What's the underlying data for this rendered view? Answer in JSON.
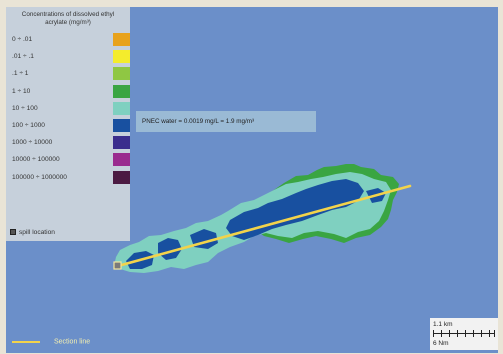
{
  "legend": {
    "title": "Concentrations of dissolved ethyl acrylate (mg/m³)",
    "classes": [
      {
        "label": "0 ÷ .01",
        "color": "#e8a21c"
      },
      {
        "label": ".01 ÷ .1",
        "color": "#f4ec2c"
      },
      {
        "label": ".1 ÷ 1",
        "color": "#8fc743"
      },
      {
        "label": "1 ÷ 10",
        "color": "#3aa542"
      },
      {
        "label": "10 ÷ 100",
        "color": "#7fd0c0"
      },
      {
        "label": "100 ÷ 1000",
        "color": "#1850a0"
      },
      {
        "label": "1000 ÷ 10000",
        "color": "#3a2d8d"
      },
      {
        "label": "10000 ÷ 100000",
        "color": "#9a2b8e"
      },
      {
        "label": "100000 ÷ 1000000",
        "color": "#4b1a42"
      }
    ],
    "spill_label": "spill location"
  },
  "annotation": "PNEC water = 0.0019 mg/L = 1.9 mg/m³",
  "section_line_label": "Section line",
  "scale": {
    "upper_label": "1.1 km",
    "lower_label": "6 Nm"
  },
  "colors": {
    "sea": "#6b8fc9",
    "green_edge": "#3aa542",
    "plume_cyan": "#7fd0c0",
    "plume_core": "#1850a0",
    "section_line": "#f2d34b"
  }
}
